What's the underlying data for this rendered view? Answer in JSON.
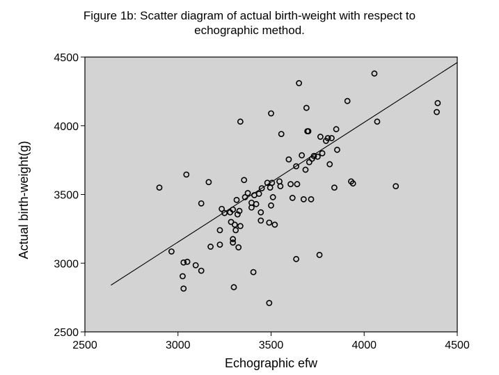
{
  "chart_data": {
    "type": "scatter",
    "title_lines": [
      "Figure 1b: Scatter diagram of actual birth-weight with respect to",
      "echographic method."
    ],
    "xlabel": "Echographic efw",
    "ylabel": "Actual birth-weight(g)",
    "xlim": [
      2500,
      4500
    ],
    "ylim": [
      2500,
      4500
    ],
    "xticks": [
      "2500",
      "3000",
      "3500",
      "4000",
      "4500"
    ],
    "yticks": [
      "2500",
      "3000",
      "3500",
      "4000",
      "4500"
    ],
    "grid": false,
    "background": "#d3d3d3",
    "marker_color": "#000000",
    "fit_line": {
      "x": [
        2640,
        4500
      ],
      "y": [
        2840,
        4460
      ]
    },
    "points": [
      [
        2900,
        3550
      ],
      [
        2965,
        3085
      ],
      [
        3025,
        2905
      ],
      [
        3030,
        3005
      ],
      [
        3030,
        2815
      ],
      [
        3045,
        3645
      ],
      [
        3050,
        3010
      ],
      [
        3095,
        2985
      ],
      [
        3125,
        3435
      ],
      [
        3125,
        2945
      ],
      [
        3165,
        3590
      ],
      [
        3175,
        3120
      ],
      [
        3225,
        3135
      ],
      [
        3225,
        3240
      ],
      [
        3235,
        3395
      ],
      [
        3250,
        3365
      ],
      [
        3280,
        3370
      ],
      [
        3285,
        3300
      ],
      [
        3295,
        3175
      ],
      [
        3295,
        3150
      ],
      [
        3295,
        3390
      ],
      [
        3300,
        2825
      ],
      [
        3305,
        3280
      ],
      [
        3310,
        3240
      ],
      [
        3315,
        3460
      ],
      [
        3320,
        3355
      ],
      [
        3325,
        3115
      ],
      [
        3330,
        3380
      ],
      [
        3335,
        3270
      ],
      [
        3335,
        4030
      ],
      [
        3355,
        3605
      ],
      [
        3360,
        3480
      ],
      [
        3375,
        3510
      ],
      [
        3395,
        3440
      ],
      [
        3395,
        3405
      ],
      [
        3405,
        2935
      ],
      [
        3410,
        3495
      ],
      [
        3420,
        3430
      ],
      [
        3435,
        3505
      ],
      [
        3445,
        3310
      ],
      [
        3445,
        3370
      ],
      [
        3450,
        3545
      ],
      [
        3480,
        3585
      ],
      [
        3490,
        2710
      ],
      [
        3490,
        3295
      ],
      [
        3495,
        3550
      ],
      [
        3500,
        3420
      ],
      [
        3500,
        4090
      ],
      [
        3505,
        3585
      ],
      [
        3510,
        3480
      ],
      [
        3520,
        3280
      ],
      [
        3545,
        3595
      ],
      [
        3550,
        3560
      ],
      [
        3555,
        3940
      ],
      [
        3595,
        3755
      ],
      [
        3605,
        3575
      ],
      [
        3615,
        3475
      ],
      [
        3635,
        3030
      ],
      [
        3635,
        3705
      ],
      [
        3640,
        3575
      ],
      [
        3650,
        4310
      ],
      [
        3665,
        3785
      ],
      [
        3675,
        3465
      ],
      [
        3685,
        3680
      ],
      [
        3690,
        4130
      ],
      [
        3695,
        3960
      ],
      [
        3700,
        3960
      ],
      [
        3705,
        3735
      ],
      [
        3715,
        3465
      ],
      [
        3720,
        3760
      ],
      [
        3730,
        3780
      ],
      [
        3750,
        3775
      ],
      [
        3760,
        3060
      ],
      [
        3765,
        3920
      ],
      [
        3775,
        3800
      ],
      [
        3795,
        3890
      ],
      [
        3805,
        3910
      ],
      [
        3815,
        3720
      ],
      [
        3825,
        3910
      ],
      [
        3840,
        3550
      ],
      [
        3850,
        3975
      ],
      [
        3855,
        3825
      ],
      [
        3910,
        4180
      ],
      [
        3930,
        3595
      ],
      [
        3940,
        3580
      ],
      [
        4055,
        4380
      ],
      [
        4070,
        4030
      ],
      [
        4170,
        3560
      ],
      [
        4390,
        4100
      ],
      [
        4395,
        4165
      ]
    ]
  }
}
